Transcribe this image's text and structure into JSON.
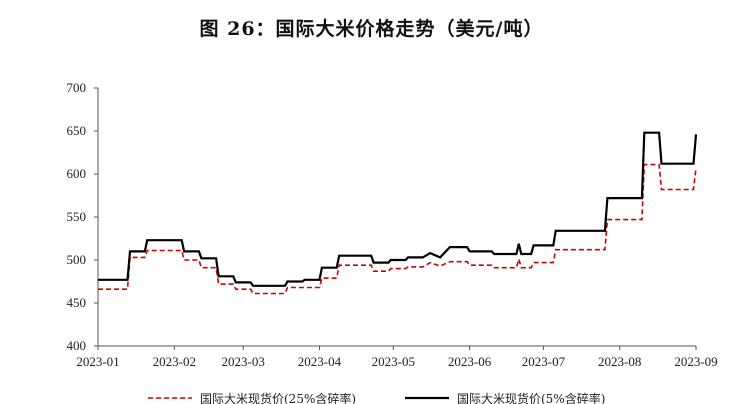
{
  "chart_data": {
    "type": "line",
    "title": "图 26：国际大米价格走势（美元/吨）",
    "xlabel": "",
    "ylabel": "",
    "ylim": [
      400,
      700
    ],
    "yticks": [
      400,
      450,
      500,
      550,
      600,
      650,
      700
    ],
    "xlim": [
      "2023-01-01",
      "2023-09-01"
    ],
    "xticks": [
      "2023-01",
      "2023-02",
      "2023-03",
      "2023-04",
      "2023-05",
      "2023-06",
      "2023-07",
      "2023-08",
      "2023-09"
    ],
    "grid": false,
    "legend_position": "bottom",
    "series": [
      {
        "name": "国际大米现货价(25%含碎率)",
        "color": "#cc0000",
        "style": "dashed",
        "points": [
          [
            "2023-01-01",
            466
          ],
          [
            "2023-01-13",
            466
          ],
          [
            "2023-01-14",
            503
          ],
          [
            "2023-01-20",
            503
          ],
          [
            "2023-01-21",
            511
          ],
          [
            "2023-02-04",
            511
          ],
          [
            "2023-02-05",
            500
          ],
          [
            "2023-02-11",
            500
          ],
          [
            "2023-02-12",
            491
          ],
          [
            "2023-02-18",
            491
          ],
          [
            "2023-02-19",
            472
          ],
          [
            "2023-02-25",
            472
          ],
          [
            "2023-02-26",
            466
          ],
          [
            "2023-03-04",
            466
          ],
          [
            "2023-03-05",
            461
          ],
          [
            "2023-03-18",
            461
          ],
          [
            "2023-03-19",
            468
          ],
          [
            "2023-04-01",
            468
          ],
          [
            "2023-04-02",
            479
          ],
          [
            "2023-04-08",
            479
          ],
          [
            "2023-04-09",
            494
          ],
          [
            "2023-04-22",
            494
          ],
          [
            "2023-04-23",
            487
          ],
          [
            "2023-04-29",
            487
          ],
          [
            "2023-04-30",
            490
          ],
          [
            "2023-05-06",
            490
          ],
          [
            "2023-05-07",
            492
          ],
          [
            "2023-05-13",
            492
          ],
          [
            "2023-05-16",
            497
          ],
          [
            "2023-05-20",
            493
          ],
          [
            "2023-05-24",
            498
          ],
          [
            "2023-05-31",
            498
          ],
          [
            "2023-06-01",
            494
          ],
          [
            "2023-06-10",
            494
          ],
          [
            "2023-06-11",
            491
          ],
          [
            "2023-06-20",
            491
          ],
          [
            "2023-06-21",
            501
          ],
          [
            "2023-06-22",
            491
          ],
          [
            "2023-06-26",
            491
          ],
          [
            "2023-06-27",
            497
          ],
          [
            "2023-07-05",
            497
          ],
          [
            "2023-07-06",
            512
          ],
          [
            "2023-07-26",
            512
          ],
          [
            "2023-07-27",
            547
          ],
          [
            "2023-08-10",
            547
          ],
          [
            "2023-08-11",
            611
          ],
          [
            "2023-08-17",
            611
          ],
          [
            "2023-08-18",
            582
          ],
          [
            "2023-08-31",
            582
          ],
          [
            "2023-09-01",
            607
          ]
        ]
      },
      {
        "name": "国际大米现货价(5%含碎率)",
        "color": "#000000",
        "style": "solid",
        "points": [
          [
            "2023-01-01",
            477
          ],
          [
            "2023-01-13",
            477
          ],
          [
            "2023-01-14",
            510
          ],
          [
            "2023-01-20",
            510
          ],
          [
            "2023-01-21",
            523
          ],
          [
            "2023-02-04",
            523
          ],
          [
            "2023-02-05",
            510
          ],
          [
            "2023-02-11",
            510
          ],
          [
            "2023-02-12",
            502
          ],
          [
            "2023-02-18",
            502
          ],
          [
            "2023-02-19",
            481
          ],
          [
            "2023-02-25",
            481
          ],
          [
            "2023-02-26",
            474
          ],
          [
            "2023-03-04",
            474
          ],
          [
            "2023-03-05",
            470
          ],
          [
            "2023-03-18",
            470
          ],
          [
            "2023-03-19",
            475
          ],
          [
            "2023-03-25",
            475
          ],
          [
            "2023-03-26",
            477
          ],
          [
            "2023-04-01",
            477
          ],
          [
            "2023-04-02",
            491
          ],
          [
            "2023-04-08",
            491
          ],
          [
            "2023-04-09",
            505
          ],
          [
            "2023-04-22",
            505
          ],
          [
            "2023-04-23",
            497
          ],
          [
            "2023-04-29",
            497
          ],
          [
            "2023-04-30",
            500
          ],
          [
            "2023-05-06",
            500
          ],
          [
            "2023-05-07",
            503
          ],
          [
            "2023-05-13",
            503
          ],
          [
            "2023-05-16",
            508
          ],
          [
            "2023-05-20",
            503
          ],
          [
            "2023-05-24",
            515
          ],
          [
            "2023-05-31",
            515
          ],
          [
            "2023-06-01",
            510
          ],
          [
            "2023-06-10",
            510
          ],
          [
            "2023-06-11",
            507
          ],
          [
            "2023-06-20",
            507
          ],
          [
            "2023-06-21",
            519
          ],
          [
            "2023-06-22",
            507
          ],
          [
            "2023-06-26",
            507
          ],
          [
            "2023-06-27",
            517
          ],
          [
            "2023-07-05",
            517
          ],
          [
            "2023-07-06",
            534
          ],
          [
            "2023-07-26",
            534
          ],
          [
            "2023-07-27",
            572
          ],
          [
            "2023-08-10",
            572
          ],
          [
            "2023-08-11",
            648
          ],
          [
            "2023-08-17",
            648
          ],
          [
            "2023-08-18",
            612
          ],
          [
            "2023-08-31",
            612
          ],
          [
            "2023-09-01",
            646
          ]
        ]
      }
    ]
  }
}
